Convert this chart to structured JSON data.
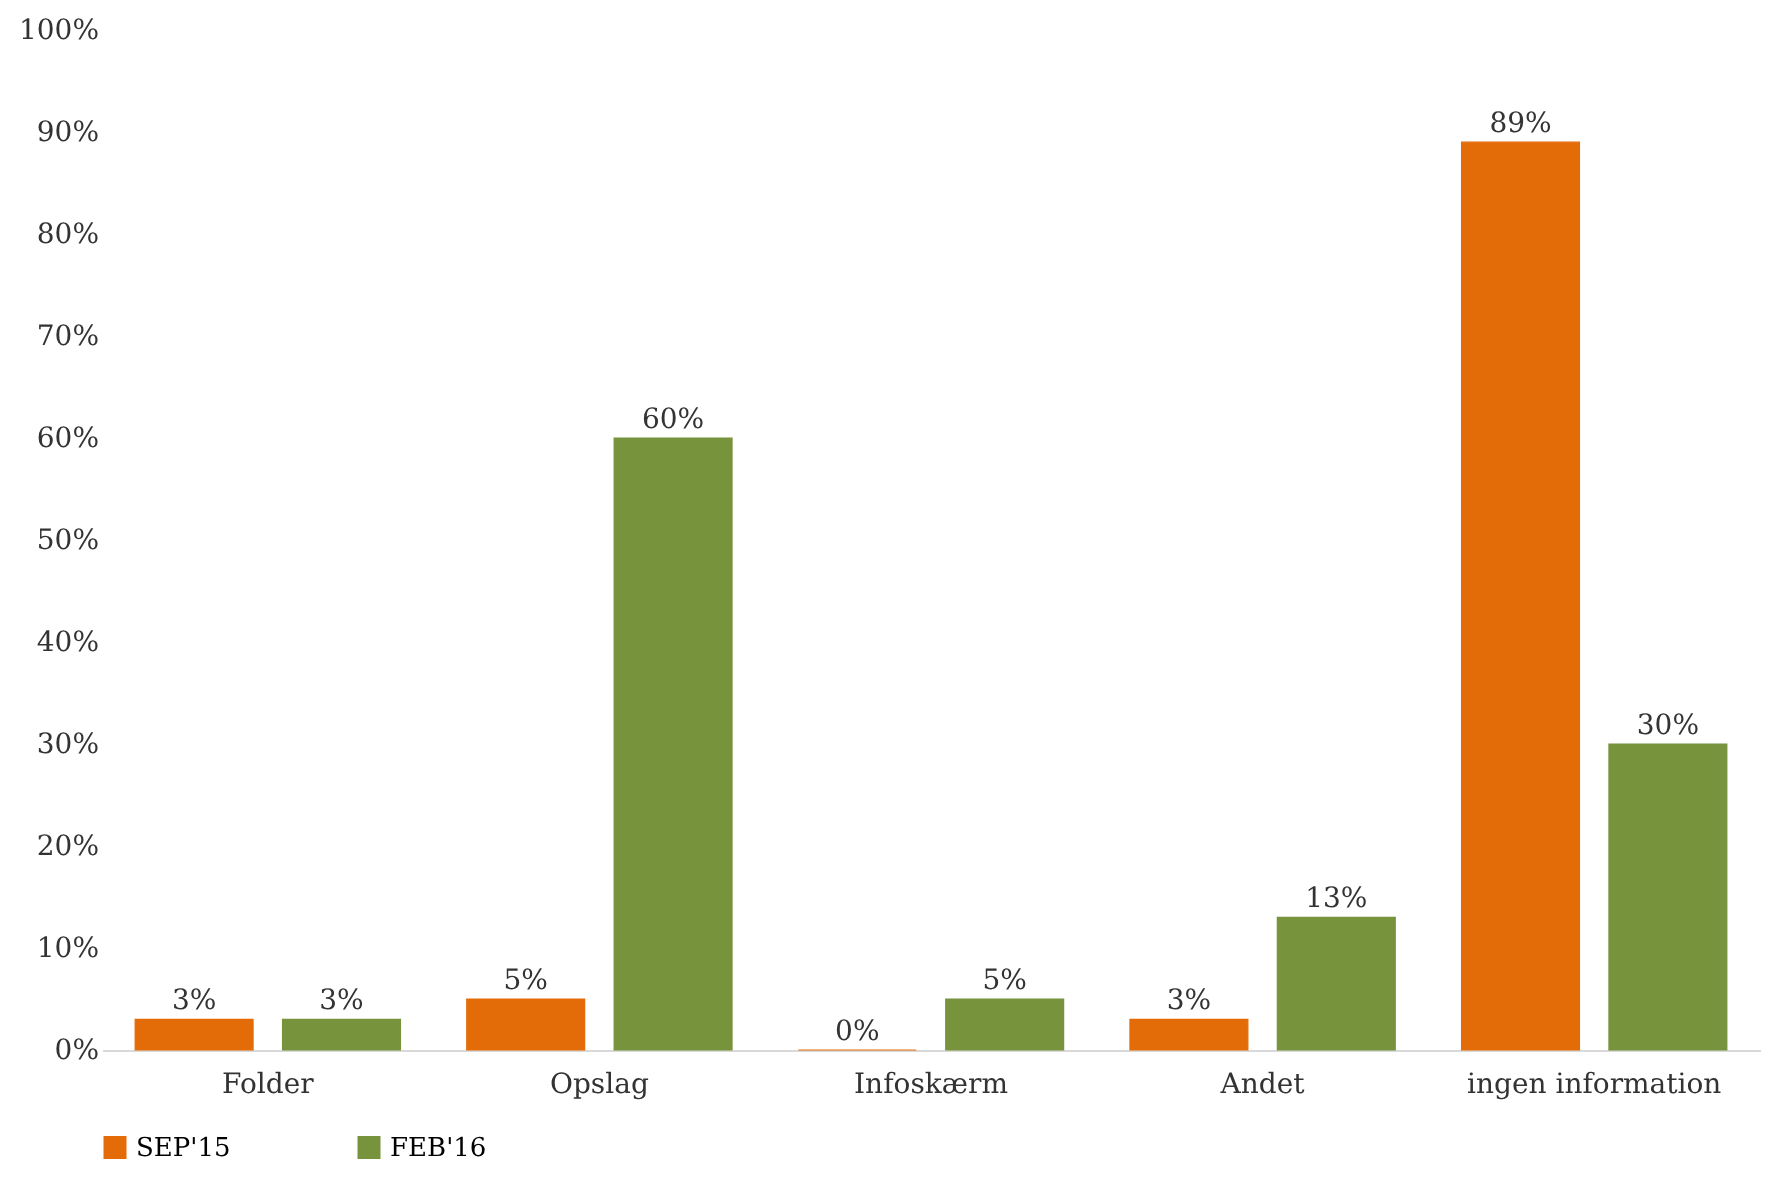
{
  "chart_data": {
    "type": "bar",
    "categories": [
      "Folder",
      "Opslag",
      "Infoskærm",
      "Andet",
      "ingen information"
    ],
    "series": [
      {
        "name": "SEP'15",
        "color": "#e36c09",
        "values": [
          3,
          5,
          0,
          3,
          89
        ],
        "value_labels": [
          "3%",
          "5%",
          "0%",
          "3%",
          "89%"
        ]
      },
      {
        "name": "FEB'16",
        "color": "#77933c",
        "values": [
          3,
          60,
          5,
          13,
          30
        ],
        "value_labels": [
          "3%",
          "60%",
          "5%",
          "13%",
          "30%"
        ]
      }
    ],
    "ylim": [
      0,
      100
    ],
    "yticks": [
      {
        "value": 0,
        "label": "0%"
      },
      {
        "value": 10,
        "label": "10%"
      },
      {
        "value": 20,
        "label": "20%"
      },
      {
        "value": 30,
        "label": "30%"
      },
      {
        "value": 40,
        "label": "40%"
      },
      {
        "value": 50,
        "label": "50%"
      },
      {
        "value": 60,
        "label": "60%"
      },
      {
        "value": 70,
        "label": "70%"
      },
      {
        "value": 80,
        "label": "80%"
      },
      {
        "value": 90,
        "label": "90%"
      },
      {
        "value": 100,
        "label": "100%"
      }
    ],
    "grid": false,
    "legend": "bottom"
  }
}
